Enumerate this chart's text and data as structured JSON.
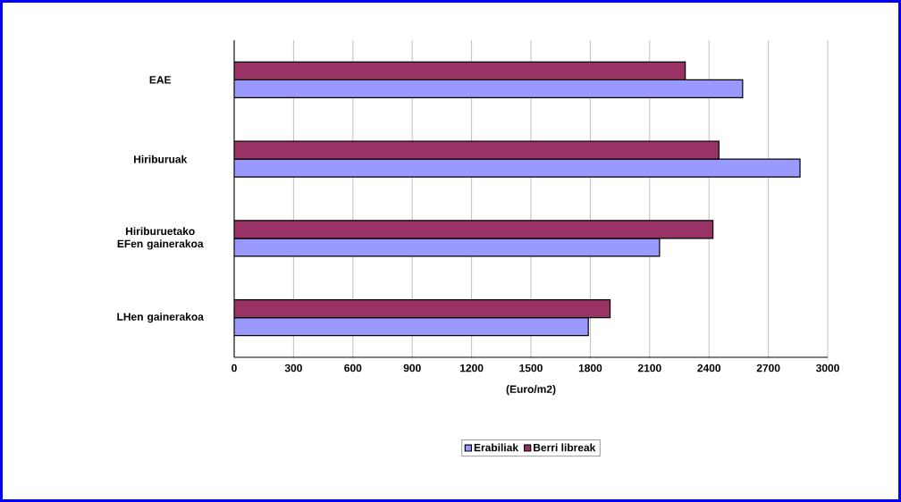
{
  "chart_data": {
    "type": "bar",
    "orientation": "horizontal",
    "xlabel": "(Euro/m2)",
    "categories": [
      "EAE",
      "Hiriburuak",
      "Hiriburuetako EFen gainerakoa",
      "LHen gainerakoa"
    ],
    "series": [
      {
        "name": "Erabiliak",
        "color": "#9999ff",
        "values": [
          2570,
          2860,
          2150,
          1790
        ]
      },
      {
        "name": "Berri libreak",
        "color": "#993366",
        "values": [
          2280,
          2450,
          2420,
          1900
        ]
      }
    ],
    "xlim": [
      0,
      3000
    ],
    "xticks": [
      0,
      300,
      600,
      900,
      1200,
      1500,
      1800,
      2100,
      2400,
      2700,
      3000
    ],
    "grid": "x",
    "legend": "bottom"
  }
}
